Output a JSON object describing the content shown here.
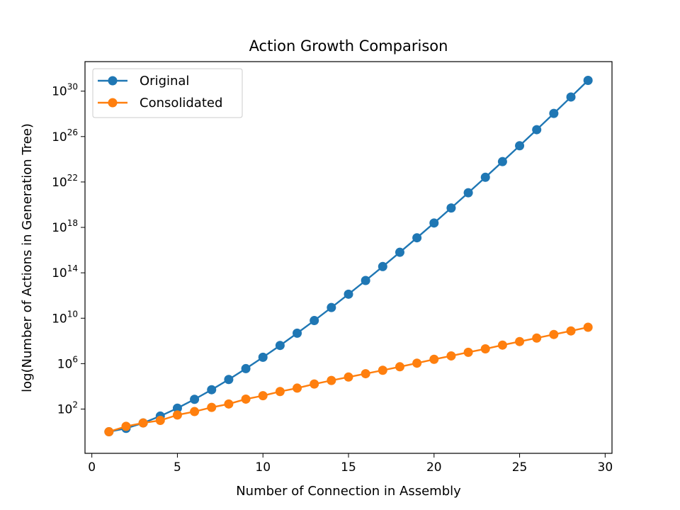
{
  "chart_data": {
    "type": "line",
    "title": "Action Growth Comparison",
    "xlabel": "Number of Connection in Assembly",
    "ylabel": "log(Number of Actions in Generation Tree)",
    "y_scale": "log",
    "xlim": [
      -0.4,
      30.4
    ],
    "ylim_exponent": [
      -1.9,
      32.6
    ],
    "x_ticks": [
      0,
      5,
      10,
      15,
      20,
      25,
      30
    ],
    "y_ticks": [
      {
        "base": "10",
        "exp": "2",
        "value": 100.0
      },
      {
        "base": "10",
        "exp": "6",
        "value": 1000000.0
      },
      {
        "base": "10",
        "exp": "10",
        "value": 10000000000.0
      },
      {
        "base": "10",
        "exp": "14",
        "value": 100000000000000.0
      },
      {
        "base": "10",
        "exp": "18",
        "value": 1e+18
      },
      {
        "base": "10",
        "exp": "22",
        "value": 1e+22
      },
      {
        "base": "10",
        "exp": "26",
        "value": 1e+26
      },
      {
        "base": "10",
        "exp": "30",
        "value": 1e+30
      }
    ],
    "grid": false,
    "legend_position": "top-left",
    "x": [
      1,
      2,
      3,
      4,
      5,
      6,
      7,
      8,
      9,
      10,
      11,
      12,
      13,
      14,
      15,
      16,
      17,
      18,
      19,
      20,
      21,
      22,
      23,
      24,
      25,
      26,
      27,
      28,
      29
    ],
    "series": [
      {
        "name": "Original",
        "color": "#1f77b4",
        "values": [
          1,
          2,
          6,
          24,
          120,
          720,
          5040,
          40320,
          362880,
          3628800,
          39916800,
          479001600,
          6227020800,
          87178291200,
          1307700000000.0,
          20923000000000.0,
          355690000000000.0,
          6402400000000000.0,
          1.2165e+17,
          2.4329e+18,
          5.1091e+19,
          1.124e+21,
          2.5852e+22,
          6.2045e+23,
          1.5511e+25,
          4.0329e+26,
          1.0889e+28,
          3.0489e+29,
          8.8418e+30
        ]
      },
      {
        "name": "Consolidated",
        "color": "#ff7f0e",
        "values": [
          1,
          3,
          6,
          10,
          30,
          60,
          140,
          280,
          750,
          1500,
          3500,
          7000,
          16000,
          33000,
          66000,
          130000.0,
          260000.0,
          530000.0,
          1100000.0,
          2400000.0,
          4800000.0,
          10000000.0,
          20000000.0,
          43000000.0,
          88000000.0,
          180000000.0,
          370000000.0,
          760000000.0,
          1600000000.0
        ]
      }
    ]
  }
}
